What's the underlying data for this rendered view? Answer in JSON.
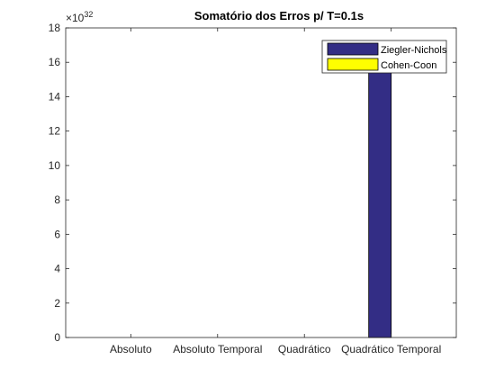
{
  "chart_data": {
    "type": "bar",
    "title": "Somatório dos Erros p/ T=0.1s",
    "xlabel": "",
    "ylabel": "",
    "exponent_base": "×10",
    "exponent_power": "32",
    "categories": [
      "Absoluto",
      "Absoluto Temporal",
      "Quadrático",
      "Quadrático Temporal"
    ],
    "yticks": [
      0,
      2,
      4,
      6,
      8,
      10,
      12,
      14,
      16,
      18
    ],
    "ylim": [
      0,
      18
    ],
    "series": [
      {
        "name": "Ziegler-Nichols",
        "color": "#332d85",
        "values": [
          0,
          0,
          0,
          16.1
        ]
      },
      {
        "name": "Cohen-Coon",
        "color": "#ffff00",
        "values": [
          0,
          0,
          0,
          0
        ]
      }
    ],
    "legend_position": "top-right",
    "grid": false
  }
}
